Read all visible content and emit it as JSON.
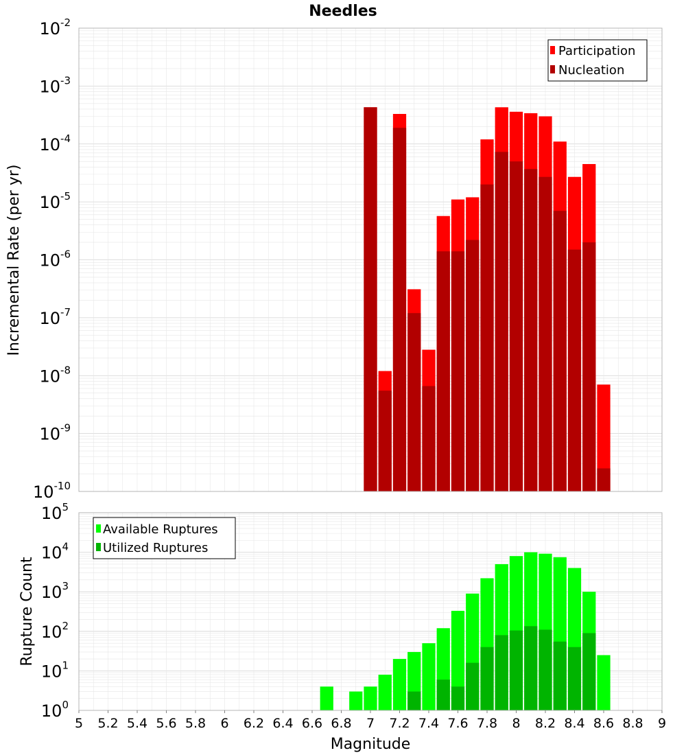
{
  "chart_data": [
    {
      "type": "bar",
      "title": "Needles",
      "xlabel": "",
      "ylabel": "Incremental Rate (per yr)",
      "yscale": "log",
      "ylim": [
        1e-10,
        0.01
      ],
      "xlim": [
        5,
        9
      ],
      "grid": true,
      "legend_position": "top-right",
      "x": [
        7.0,
        7.1,
        7.2,
        7.3,
        7.4,
        7.5,
        7.6,
        7.7,
        7.8,
        7.9,
        8.0,
        8.1,
        8.2,
        8.3,
        8.4,
        8.5,
        8.6,
        8.7
      ],
      "series": [
        {
          "name": "Participation",
          "color": "#ff0000",
          "values": [
            0.00043,
            1.2e-08,
            0.00033,
            3.1e-07,
            2.8e-08,
            5.7e-06,
            1.1e-05,
            1.2e-05,
            0.00012,
            0.00043,
            0.00036,
            0.00034,
            0.0003,
            0.00011,
            2.7e-05,
            4.5e-05,
            7e-09,
            null
          ]
        },
        {
          "name": "Nucleation",
          "color": "#b20000",
          "values": [
            0.00043,
            5.5e-09,
            0.00019,
            1.2e-07,
            6.6e-09,
            1.4e-06,
            1.4e-06,
            2.2e-06,
            2e-05,
            7.3e-05,
            5e-05,
            3.7e-05,
            2.7e-05,
            7e-06,
            1.5e-06,
            2e-06,
            2.5e-10,
            null
          ]
        }
      ]
    },
    {
      "type": "bar",
      "title": "",
      "xlabel": "Magnitude",
      "ylabel": "Rupture Count",
      "yscale": "log",
      "ylim": [
        1,
        100000
      ],
      "xlim": [
        5,
        9
      ],
      "grid": true,
      "legend_position": "top-left",
      "x": [
        6.7,
        6.8,
        6.9,
        7.0,
        7.1,
        7.2,
        7.3,
        7.4,
        7.5,
        7.6,
        7.7,
        7.8,
        7.9,
        8.0,
        8.1,
        8.2,
        8.3,
        8.4,
        8.5,
        8.6,
        8.7
      ],
      "series": [
        {
          "name": "Available Ruptures",
          "color": "#00ff00",
          "values": [
            4,
            null,
            3,
            4,
            8,
            20,
            30,
            50,
            120,
            330,
            900,
            2200,
            5000,
            8000,
            10000,
            9200,
            7500,
            4000,
            1000,
            25,
            null
          ]
        },
        {
          "name": "Utilized Ruptures",
          "color": "#00b400",
          "values": [
            null,
            null,
            null,
            1,
            1,
            1,
            3,
            1,
            6,
            4,
            16,
            40,
            80,
            105,
            135,
            110,
            55,
            40,
            90,
            1,
            null
          ]
        }
      ],
      "xticks": [
        "5",
        "5.2",
        "5.4",
        "5.6",
        "5.8",
        "6",
        "6.2",
        "6.4",
        "6.6",
        "6.8",
        "7",
        "7.2",
        "7.4",
        "7.6",
        "7.8",
        "8",
        "8.2",
        "8.4",
        "8.6",
        "8.8",
        "9"
      ]
    }
  ],
  "colors": {
    "participation": "#ff0000",
    "nucleation": "#b20000",
    "available": "#00ff00",
    "utilized": "#00b400",
    "grid": "#e6e6e6",
    "frame": "#b4b4b4"
  }
}
